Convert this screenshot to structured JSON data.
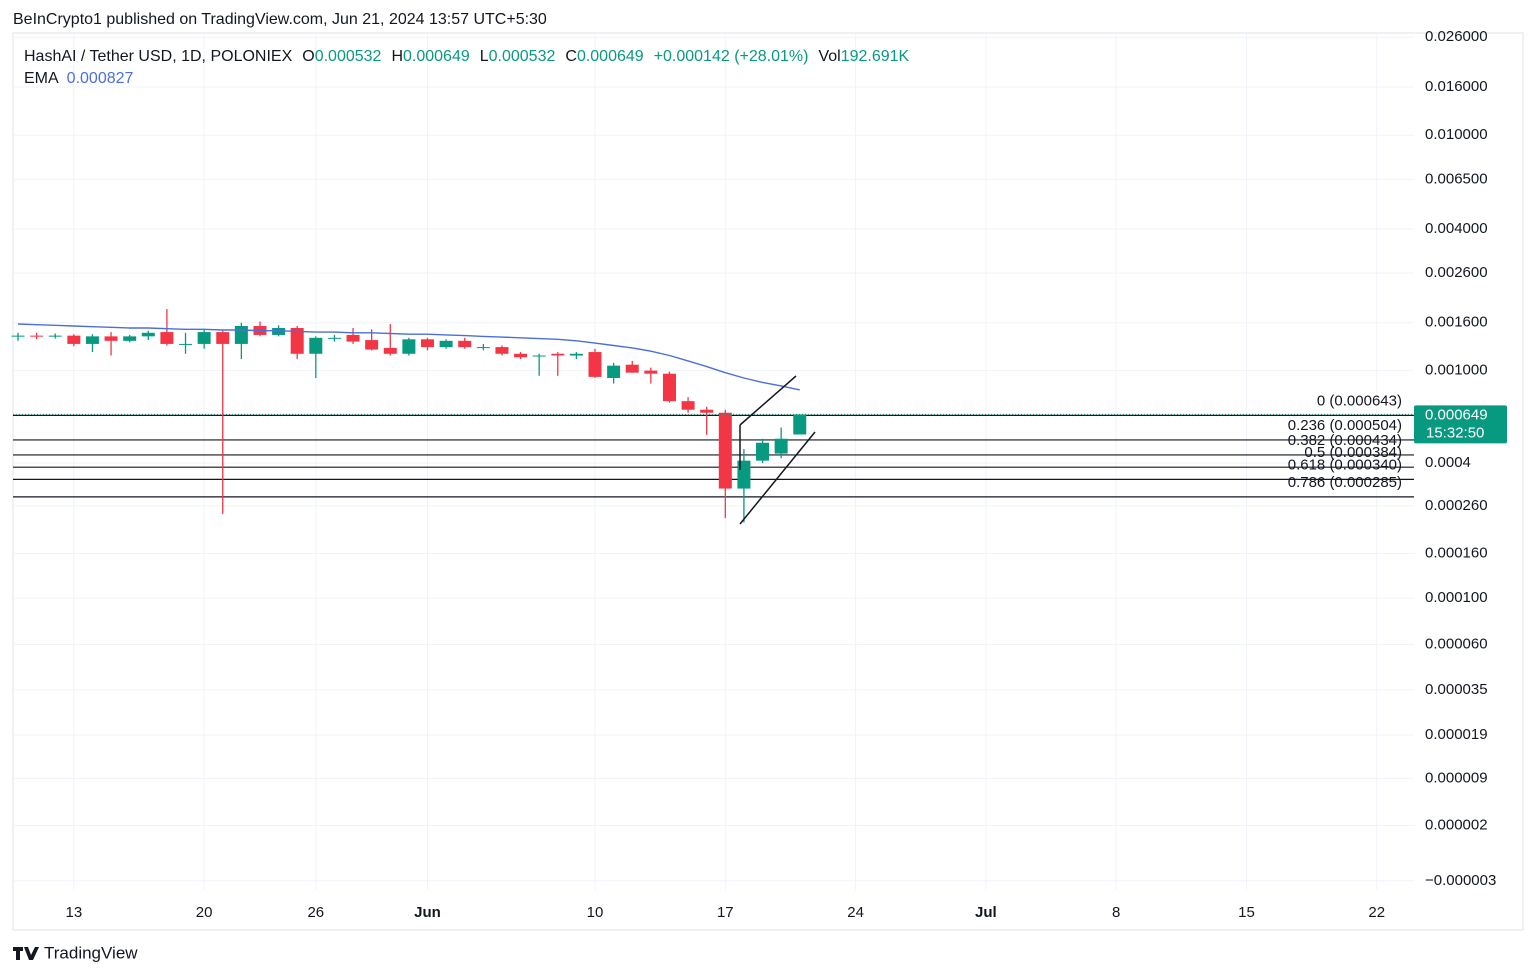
{
  "chart_data": {
    "type": "candlestick",
    "attribution": "BeInCrypto1 published on TradingView.com, Jun 21, 2024 13:57 UTC+5:30",
    "legend": {
      "symbol": "HashAI / Tether USD, 1D, POLONIEX",
      "open_label": "O",
      "open": 0.000532,
      "high_label": "H",
      "high": 0.000649,
      "low_label": "L",
      "low": 0.000532,
      "close_label": "C",
      "close": 0.000649,
      "change": "+0.000142 (+28.01%)",
      "volume_label": "Vol",
      "volume": "192.691K",
      "ema_label": "EMA",
      "ema": 0.000827
    },
    "brand": "TradingView",
    "log_scale": true,
    "grid": true,
    "up_color": "#089981",
    "down_color": "#f23645",
    "ema_color": "#4a6fdc",
    "x": [
      "05-10",
      "05-11",
      "05-12",
      "05-13",
      "05-14",
      "05-15",
      "05-16",
      "05-17",
      "05-18",
      "05-19",
      "05-20",
      "05-21",
      "05-22",
      "05-23",
      "05-24",
      "05-25",
      "05-26",
      "05-27",
      "05-28",
      "05-29",
      "05-30",
      "05-31",
      "06-01",
      "06-02",
      "06-03",
      "06-04",
      "06-05",
      "06-06",
      "06-07",
      "06-08",
      "06-09",
      "06-10",
      "06-11",
      "06-12",
      "06-13",
      "06-14",
      "06-15",
      "06-16",
      "06-17",
      "06-18",
      "06-19",
      "06-20",
      "06-21"
    ],
    "open": [
      0.0014,
      0.00141,
      0.0014,
      0.00141,
      0.0013,
      0.0014,
      0.00134,
      0.0014,
      0.00146,
      0.0013,
      0.0013,
      0.00146,
      0.0013,
      0.00155,
      0.00142,
      0.00152,
      0.00118,
      0.00138,
      0.00142,
      0.00135,
      0.00125,
      0.00118,
      0.00136,
      0.00126,
      0.00134,
      0.00126,
      0.00126,
      0.00118,
      0.00116,
      0.00118,
      0.00116,
      0.0012,
      0.00093,
      0.00106,
      0.001,
      0.00097,
      0.00074,
      0.00068,
      0.00066,
      0.00031,
      0.00041,
      0.00044,
      0.000532
    ],
    "high": [
      0.00145,
      0.00145,
      0.00144,
      0.00143,
      0.00143,
      0.00146,
      0.00142,
      0.00148,
      0.00183,
      0.00145,
      0.0015,
      0.00148,
      0.0016,
      0.00162,
      0.00156,
      0.00155,
      0.0014,
      0.00142,
      0.00152,
      0.0015,
      0.00158,
      0.00138,
      0.00138,
      0.00136,
      0.00138,
      0.0013,
      0.00128,
      0.0012,
      0.00118,
      0.0012,
      0.0012,
      0.00124,
      0.00108,
      0.0011,
      0.00103,
      0.00099,
      0.00077,
      0.0007,
      0.00068,
      0.00046,
      0.00051,
      0.00057,
      0.000649
    ],
    "low": [
      0.00134,
      0.00136,
      0.00137,
      0.00127,
      0.0012,
      0.00116,
      0.00132,
      0.00135,
      0.00128,
      0.00118,
      0.00124,
      0.00024,
      0.00112,
      0.0014,
      0.0014,
      0.00112,
      0.00093,
      0.00133,
      0.0013,
      0.00122,
      0.00116,
      0.00116,
      0.00122,
      0.00124,
      0.00124,
      0.00122,
      0.00116,
      0.00112,
      0.00095,
      0.00095,
      0.00112,
      0.00093,
      0.00088,
      0.00098,
      0.00088,
      0.00073,
      0.00066,
      0.00053,
      0.00023,
      0.00022,
      0.0004,
      0.00042,
      0.000532
    ],
    "close": [
      0.00141,
      0.0014,
      0.00141,
      0.0013,
      0.0014,
      0.00134,
      0.0014,
      0.00145,
      0.0013,
      0.0013,
      0.00146,
      0.0013,
      0.00155,
      0.00142,
      0.00152,
      0.00118,
      0.00138,
      0.00138,
      0.00133,
      0.00123,
      0.00118,
      0.00136,
      0.00126,
      0.00134,
      0.00126,
      0.00126,
      0.00118,
      0.00114,
      0.00116,
      0.00116,
      0.00118,
      0.00094,
      0.00105,
      0.00098,
      0.00097,
      0.00074,
      0.00068,
      0.00066,
      0.00031,
      0.00041,
      0.00049,
      0.00051,
      0.000649
    ],
    "ema": [
      0.00158,
      0.00157,
      0.00156,
      0.00155,
      0.00154,
      0.00153,
      0.00152,
      0.00152,
      0.00151,
      0.0015,
      0.0015,
      0.00149,
      0.00149,
      0.00148,
      0.00148,
      0.00147,
      0.00146,
      0.00146,
      0.00145,
      0.00145,
      0.00144,
      0.00143,
      0.00143,
      0.00142,
      0.00141,
      0.0014,
      0.00139,
      0.00138,
      0.00137,
      0.00136,
      0.00134,
      0.00131,
      0.00128,
      0.00125,
      0.00121,
      0.00116,
      0.0011,
      0.00104,
      0.00098,
      0.00093,
      0.00089,
      0.00086,
      0.000827
    ],
    "fib_levels": [
      {
        "value": 0.000643,
        "label": "0 (0.000643)"
      },
      {
        "value": 0.000504,
        "label": "0.236 (0.000504)"
      },
      {
        "value": 0.000434,
        "label": "0.382 (0.000434)"
      },
      {
        "value": 0.000384,
        "label": "0.5 (0.000384)"
      },
      {
        "value": 0.00034,
        "label": "0.618 (0.000340)"
      },
      {
        "value": 0.000285,
        "label": "0.786 (0.000285)"
      }
    ],
    "last_price": 0.000649,
    "countdown": "15:32:50",
    "xlim": [
      "05-10",
      "07-24"
    ],
    "xticks": [
      {
        "value": "05-13",
        "label": "13"
      },
      {
        "value": "05-20",
        "label": "20"
      },
      {
        "value": "05-26",
        "label": "26"
      },
      {
        "value": "06-01",
        "label": "Jun"
      },
      {
        "value": "06-10",
        "label": "10"
      },
      {
        "value": "06-17",
        "label": "17"
      },
      {
        "value": "06-24",
        "label": "24"
      },
      {
        "value": "07-01",
        "label": "Jul"
      },
      {
        "value": "07-08",
        "label": "8"
      },
      {
        "value": "07-15",
        "label": "15"
      },
      {
        "value": "07-22",
        "label": "22"
      }
    ],
    "ylim": [
      -3.6e-06,
      0.0271
    ],
    "yticks": [
      {
        "value": 0.026,
        "label": "0.026000"
      },
      {
        "value": 0.016,
        "label": "0.016000"
      },
      {
        "value": 0.01,
        "label": "0.010000"
      },
      {
        "value": 0.0065,
        "label": "0.006500"
      },
      {
        "value": 0.004,
        "label": "0.004000"
      },
      {
        "value": 0.0026,
        "label": "0.002600"
      },
      {
        "value": 0.0016,
        "label": "0.001600"
      },
      {
        "value": 0.001,
        "label": "0.001000"
      },
      0.0004,
      {
        "value": 0.00026,
        "label": "0.000260"
      },
      {
        "value": 0.00016,
        "label": "0.000160"
      },
      {
        "value": 0.0001,
        "label": "0.000100"
      },
      {
        "value": 6e-05,
        "label": "0.000060"
      },
      {
        "value": 3.5e-05,
        "label": "0.000035"
      },
      {
        "value": 1.9e-05,
        "label": "0.000019"
      },
      9e-06,
      2e-06,
      {
        "value": -3e-06,
        "label": "−0.000003"
      }
    ]
  }
}
